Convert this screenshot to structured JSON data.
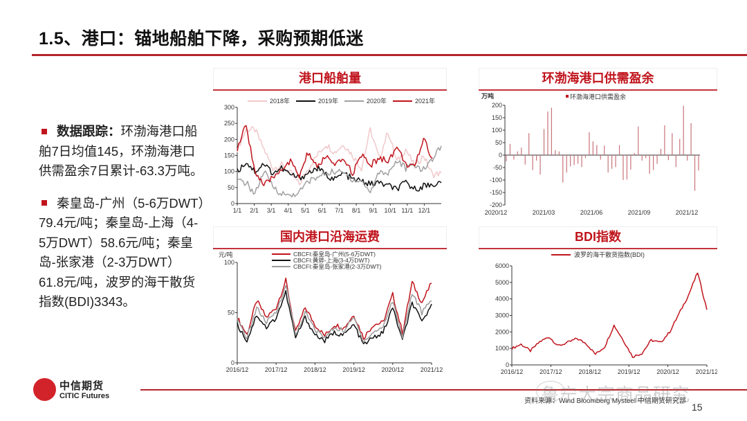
{
  "slide": {
    "title": "1.5、港口：锚地船舶下降，采购预期低迷",
    "page_number": "15",
    "source": "资料来源：Wind Bloomberg Mysteel 中信期货研究部",
    "watermark": "鲁宁大宗商品研究",
    "logo": {
      "cn": "中信期货",
      "en": "CITIC Futures"
    },
    "accent_color": "#c0141c"
  },
  "bullets": [
    {
      "bold": "数据跟踪：",
      "text": "环渤海港口船舶7日均值145，环渤海港口供需盈余7日累计-63.3万吨。"
    },
    {
      "bold": "",
      "text": "秦皇岛-广州（5-6万DWT）79.4元/吨；秦皇岛-上海（4-5万DWT）58.6元/吨；秦皇岛-张家港（2-3万DWT）61.8元/吨，波罗的海干散货指数(BDI)3343。"
    }
  ],
  "panels": {
    "p1": {
      "title": "港口船舶量"
    },
    "p2": {
      "title": "环渤海港口供需盈余"
    },
    "p3": {
      "title": "国内港口沿海运费"
    },
    "p4": {
      "title": "BDI指数"
    }
  },
  "chart_data": [
    {
      "id": "port-vessels",
      "type": "line",
      "title": "港口船舶量",
      "xlabel": "",
      "ylabel": "",
      "ylim": [
        0,
        300
      ],
      "yticks": [
        0,
        50,
        100,
        150,
        200,
        250,
        300
      ],
      "xticks": [
        "1/1",
        "2/1",
        "3/1",
        "4/1",
        "5/1",
        "6/1",
        "7/1",
        "8/1",
        "9/1",
        "10/1",
        "11/1",
        "12/1"
      ],
      "legend_position": "top",
      "x": [
        "1/1",
        "1/15",
        "2/1",
        "2/15",
        "3/1",
        "3/15",
        "4/1",
        "4/15",
        "5/1",
        "5/15",
        "6/1",
        "6/15",
        "7/1",
        "7/15",
        "8/1",
        "8/15",
        "9/1",
        "9/15",
        "10/1",
        "10/15",
        "11/1",
        "11/15",
        "12/1",
        "12/15"
      ],
      "series": [
        {
          "name": "2018年",
          "color": "#f0c8cb",
          "values": [
            170,
            230,
            230,
            170,
            110,
            120,
            95,
            60,
            110,
            150,
            185,
            160,
            185,
            150,
            110,
            230,
            140,
            225,
            130,
            170,
            115,
            150,
            90,
            95
          ]
        },
        {
          "name": "2019年",
          "color": "#111111",
          "values": [
            100,
            130,
            100,
            125,
            95,
            110,
            90,
            80,
            95,
            110,
            90,
            75,
            95,
            75,
            70,
            60,
            65,
            55,
            45,
            65,
            45,
            55,
            60,
            65
          ]
        },
        {
          "name": "2020年",
          "color": "#a0a0a0",
          "values": [
            70,
            65,
            30,
            100,
            55,
            30,
            25,
            35,
            70,
            80,
            95,
            100,
            95,
            75,
            70,
            35,
            100,
            95,
            135,
            110,
            120,
            105,
            140,
            180
          ]
        },
        {
          "name": "2021年",
          "color": "#c0141c",
          "values": [
            170,
            245,
            100,
            55,
            80,
            110,
            130,
            85,
            160,
            110,
            150,
            115,
            140,
            95,
            150,
            120,
            140,
            135,
            175,
            125,
            110,
            205,
            140,
            null
          ]
        }
      ]
    },
    {
      "id": "bohai-surplus",
      "type": "bar",
      "title": "环渤海港口供需盈余",
      "ylabel": "万吨",
      "ylim": [
        -200,
        200
      ],
      "yticks": [
        -200,
        -150,
        -100,
        -50,
        0,
        50,
        100,
        150,
        200
      ],
      "xticks": [
        "2020/12",
        "2021/03",
        "2021/06",
        "2021/09",
        "2021/12"
      ],
      "legend": [
        "环渤海港口供需盈余"
      ],
      "color": "#c8737a",
      "values": [
        -25,
        45,
        -18,
        15,
        30,
        -38,
        88,
        -60,
        -22,
        -78,
        105,
        175,
        190,
        20,
        15,
        -110,
        -70,
        -45,
        -40,
        -35,
        -48,
        -12,
        92,
        55,
        40,
        -18,
        38,
        -70,
        -55,
        -48,
        40,
        -100,
        -98,
        -58,
        8,
        115,
        -22,
        -12,
        -75,
        -60,
        -35,
        25,
        120,
        -20,
        88,
        -48,
        65,
        198,
        -22,
        128,
        -143,
        -62
      ]
    },
    {
      "id": "coastal-freight",
      "type": "line",
      "title": "国内港口沿海运费",
      "ylabel": "元/吨",
      "ylim": [
        0,
        100
      ],
      "yticks": [
        0,
        50,
        100
      ],
      "xticks": [
        "2016/12",
        "2017/12",
        "2018/12",
        "2019/12",
        "2020/12",
        "2021/12"
      ],
      "legend_position": "top",
      "x": [
        "2016/12",
        "2017/03",
        "2017/06",
        "2017/09",
        "2017/12",
        "2018/03",
        "2018/06",
        "2018/09",
        "2018/12",
        "2019/03",
        "2019/06",
        "2019/09",
        "2019/12",
        "2020/03",
        "2020/06",
        "2020/09",
        "2020/12",
        "2021/03",
        "2021/06",
        "2021/09",
        "2021/12"
      ],
      "series": [
        {
          "name": "CBCFI:秦皇岛-广州(5-6万DWT)",
          "color": "#c0141c",
          "values": [
            45,
            28,
            62,
            45,
            55,
            82,
            30,
            55,
            38,
            27,
            38,
            35,
            48,
            25,
            38,
            40,
            68,
            30,
            80,
            60,
            79.4
          ]
        },
        {
          "name": "CBCFI:黄骅-上海(3-4万DWT)",
          "color": "#111111",
          "values": [
            38,
            22,
            48,
            35,
            45,
            70,
            25,
            45,
            28,
            22,
            30,
            28,
            38,
            18,
            25,
            30,
            55,
            22,
            60,
            40,
            58.6
          ]
        },
        {
          "name": "CBCFI:秦皇岛-张家港(2-3万DWT)",
          "color": "#9a9a9a",
          "values": [
            42,
            25,
            55,
            40,
            50,
            78,
            28,
            50,
            33,
            25,
            35,
            32,
            45,
            22,
            30,
            36,
            62,
            26,
            70,
            50,
            61.8
          ]
        }
      ]
    },
    {
      "id": "bdi",
      "type": "line",
      "title": "BDI指数",
      "ylim": [
        0,
        6000
      ],
      "yticks": [
        0,
        1000,
        2000,
        3000,
        4000,
        5000,
        6000
      ],
      "xticks": [
        "2016/12",
        "2017/12",
        "2018/12",
        "2019/12",
        "2020/12",
        "2021/12"
      ],
      "legend_position": "top",
      "x": [
        "2016/12",
        "2017/03",
        "2017/06",
        "2017/09",
        "2017/12",
        "2018/03",
        "2018/06",
        "2018/09",
        "2018/12",
        "2019/03",
        "2019/06",
        "2019/09",
        "2019/12",
        "2020/03",
        "2020/06",
        "2020/09",
        "2020/12",
        "2021/03",
        "2021/06",
        "2021/09",
        "2021/10",
        "2021/12"
      ],
      "series": [
        {
          "name": "波罗的海干散货指数(BDI)",
          "color": "#c0141c",
          "values": [
            1000,
            1250,
            850,
            1400,
            1700,
            1150,
            1350,
            1600,
            1300,
            650,
            1100,
            2400,
            1500,
            500,
            700,
            1500,
            1350,
            2000,
            3100,
            4200,
            5600,
            3343
          ]
        }
      ]
    }
  ]
}
